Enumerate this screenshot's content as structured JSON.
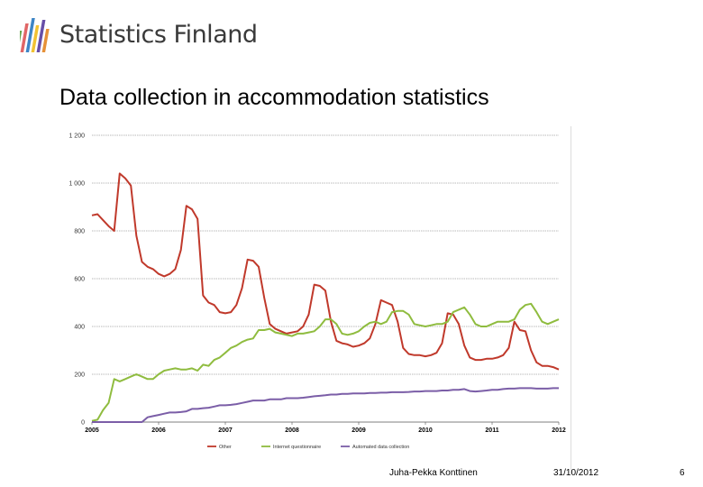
{
  "header": {
    "logo_text": "Statistics Finland",
    "title": "Data collection in accommodation statistics"
  },
  "footer": {
    "author": "Juha-Pekka Konttinen",
    "date": "31/10/2012",
    "page": "6"
  },
  "colors": {
    "other": "#c0392b",
    "internet": "#8fbc3f",
    "automated": "#7b5ea7"
  },
  "chart_data": {
    "type": "line",
    "title": "",
    "xlabel": "",
    "ylabel": "",
    "ylim": [
      0,
      1200
    ],
    "yticks": [
      0,
      200,
      400,
      600,
      800,
      1000,
      1200
    ],
    "ytick_labels": [
      "0",
      "200",
      "400",
      "600",
      "800",
      "1 000",
      "1 200"
    ],
    "grid": true,
    "legend_position": "bottom",
    "x_labels": [
      "2005",
      "2006",
      "2007",
      "2008",
      "2009",
      "2010",
      "2011",
      "2012"
    ],
    "series": [
      {
        "name": "Other",
        "color": "#c0392b",
        "values": [
          865,
          870,
          845,
          820,
          800,
          1040,
          1020,
          990,
          780,
          670,
          650,
          640,
          620,
          610,
          620,
          640,
          720,
          905,
          890,
          850,
          530,
          500,
          490,
          460,
          455,
          460,
          490,
          560,
          680,
          675,
          650,
          520,
          410,
          390,
          380,
          370,
          375,
          380,
          400,
          450,
          575,
          570,
          550,
          420,
          340,
          330,
          325,
          315,
          320,
          330,
          350,
          410,
          510,
          500,
          490,
          420,
          310,
          285,
          280,
          280,
          275,
          280,
          290,
          330,
          455,
          450,
          410,
          320,
          270,
          260,
          260,
          265,
          265,
          270,
          280,
          310,
          420,
          385,
          380,
          300,
          250,
          235,
          235,
          230,
          220
        ]
      },
      {
        "name": "Internet questionnaire",
        "color": "#8fbc3f",
        "values": [
          5,
          10,
          50,
          80,
          180,
          170,
          180,
          190,
          200,
          190,
          180,
          180,
          200,
          215,
          220,
          225,
          220,
          220,
          225,
          215,
          240,
          235,
          260,
          270,
          290,
          310,
          320,
          335,
          345,
          350,
          385,
          385,
          390,
          375,
          370,
          365,
          360,
          370,
          370,
          375,
          380,
          400,
          430,
          430,
          410,
          370,
          365,
          370,
          380,
          400,
          415,
          420,
          410,
          420,
          460,
          465,
          465,
          450,
          410,
          405,
          400,
          405,
          410,
          410,
          420,
          460,
          470,
          480,
          450,
          410,
          400,
          400,
          410,
          420,
          420,
          420,
          430,
          470,
          490,
          495,
          460,
          420,
          410,
          420,
          430
        ]
      },
      {
        "name": "Automated data collection",
        "color": "#7b5ea7",
        "values": [
          0,
          0,
          0,
          0,
          0,
          0,
          0,
          0,
          0,
          0,
          20,
          25,
          30,
          35,
          40,
          40,
          42,
          45,
          55,
          55,
          58,
          60,
          65,
          70,
          70,
          72,
          75,
          80,
          85,
          90,
          90,
          90,
          95,
          95,
          95,
          100,
          100,
          100,
          102,
          105,
          108,
          110,
          112,
          115,
          115,
          118,
          118,
          120,
          120,
          120,
          122,
          122,
          123,
          123,
          125,
          125,
          125,
          126,
          128,
          128,
          130,
          130,
          130,
          132,
          132,
          135,
          135,
          138,
          130,
          128,
          130,
          132,
          135,
          135,
          138,
          140,
          140,
          142,
          142,
          142,
          140,
          140,
          140,
          142,
          142
        ]
      }
    ]
  }
}
